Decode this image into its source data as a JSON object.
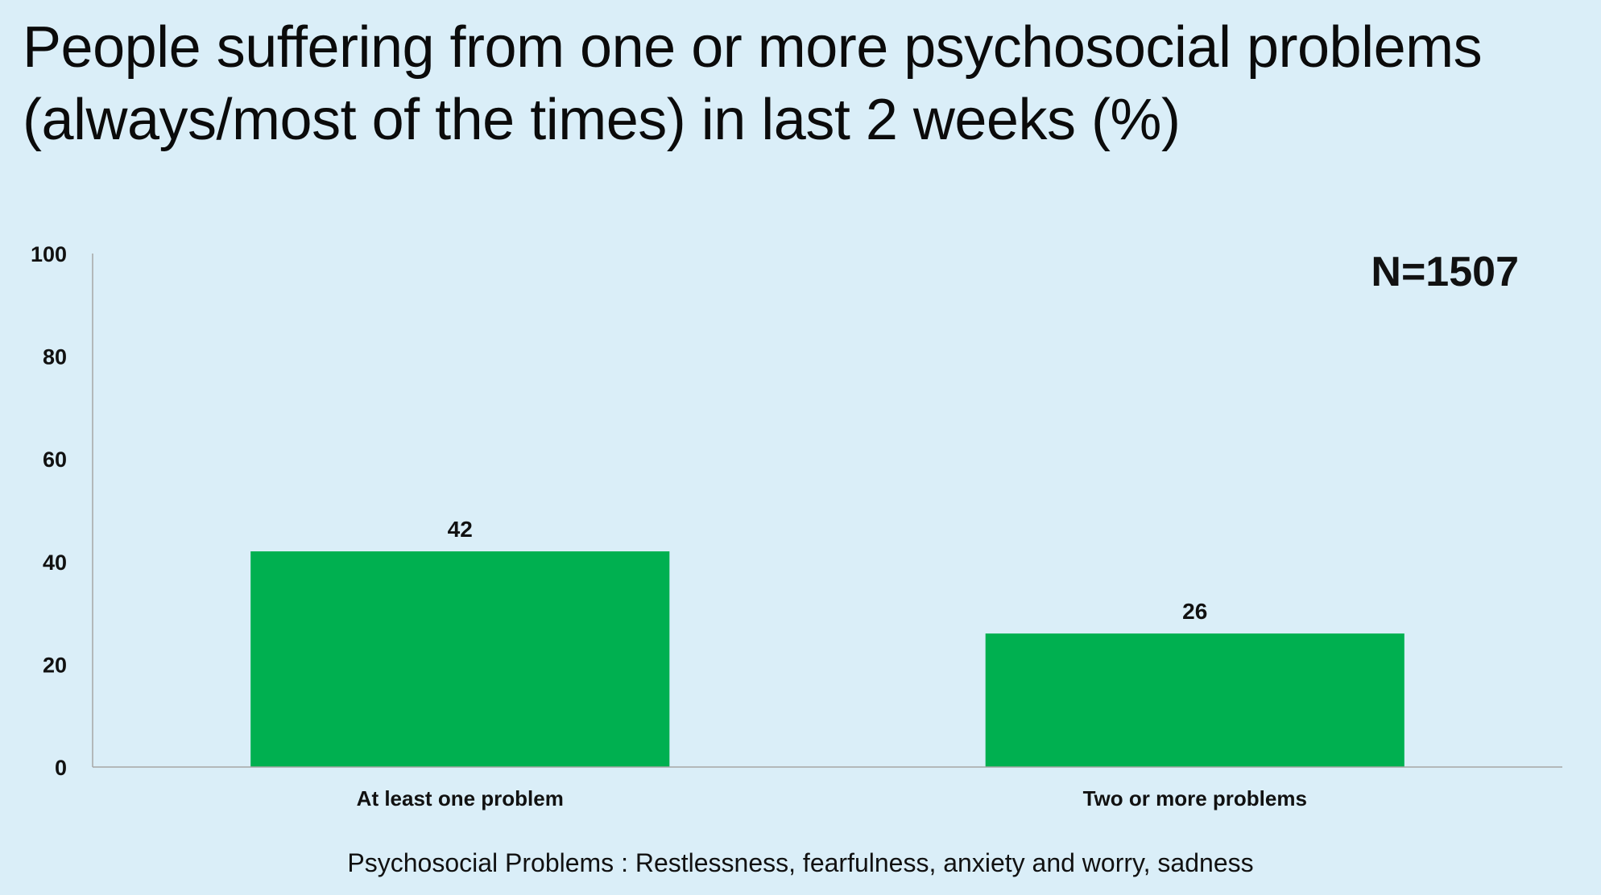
{
  "slide": {
    "title_line1": "People suffering from one or more psychosocial problems",
    "title_line2": "(always/most of the times) in last 2 weeks (%)",
    "n_label": "N=1507",
    "footnote": "Psychosocial Problems : Restlessness, fearfulness, anxiety and worry, sadness"
  },
  "colors": {
    "background": "#daeef8",
    "bar": "#00b050",
    "axis": "#a6a6a6"
  },
  "chart_data": {
    "type": "bar",
    "title": "People suffering from one or more psychosocial problems (always/most of the times) in last 2 weeks (%)",
    "categories": [
      "At least one problem",
      "Two or more problems"
    ],
    "values": [
      42,
      26
    ],
    "data_labels": [
      "42",
      "26"
    ],
    "xlabel": "",
    "ylabel": "",
    "ylim": [
      0,
      100
    ],
    "yticks": [
      0,
      20,
      40,
      60,
      80,
      100
    ],
    "grid": false,
    "legend": "none",
    "annotation": "N=1507"
  }
}
